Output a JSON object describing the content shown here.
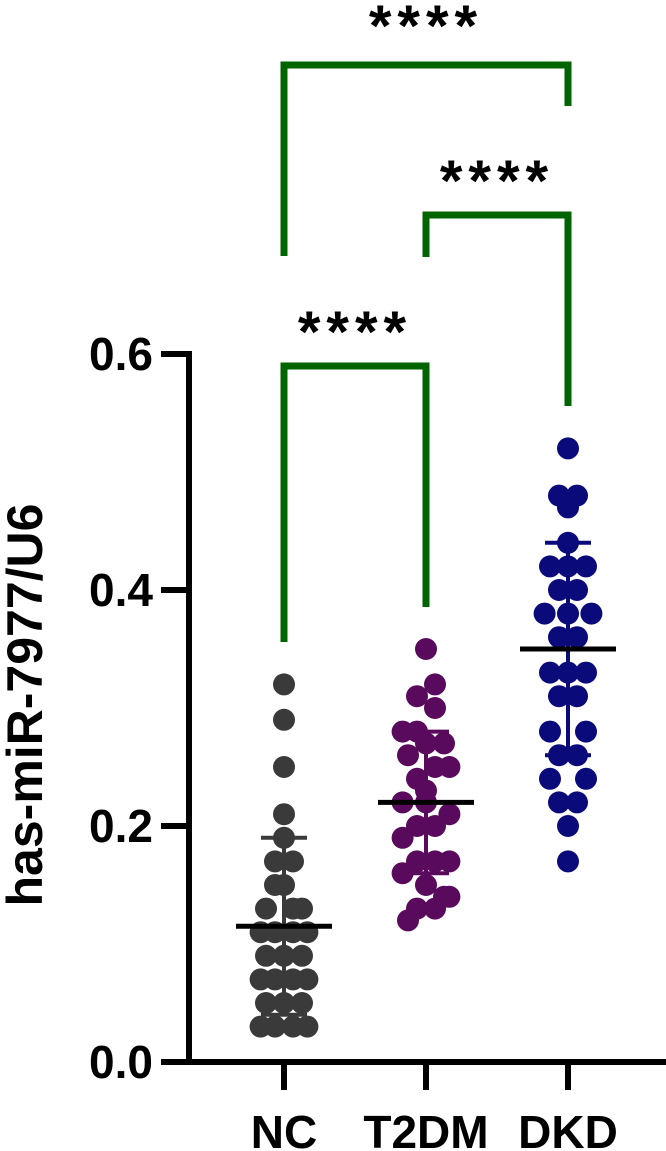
{
  "chart_data": {
    "type": "scatter",
    "ylabel": "has-miR-7977/U6",
    "ylim": [
      0,
      0.6
    ],
    "yticks": [
      0.0,
      0.2,
      0.4,
      0.6
    ],
    "ytick_labels": [
      "0.0",
      "0.2",
      "0.4",
      "0.6"
    ],
    "categories": [
      "NC",
      "T2DM",
      "DKD"
    ],
    "series": [
      {
        "category": "NC",
        "color": "#3a3a3a",
        "mean": 0.115,
        "sd_lower": 0.04,
        "sd_upper": 0.19,
        "points": [
          [
            0,
            0.32
          ],
          [
            0,
            0.29
          ],
          [
            0,
            0.25
          ],
          [
            0,
            0.21
          ],
          [
            -0.5,
            0.17
          ],
          [
            0.5,
            0.17
          ],
          [
            0,
            0.15
          ],
          [
            -1,
            0.13
          ],
          [
            1,
            0.13
          ],
          [
            -0.5,
            0.11
          ],
          [
            0.5,
            0.11
          ],
          [
            -1,
            0.09
          ],
          [
            0,
            0.09
          ],
          [
            1,
            0.09
          ],
          [
            -0.5,
            0.07
          ],
          [
            0.5,
            0.07
          ],
          [
            -1,
            0.05
          ],
          [
            0,
            0.05
          ],
          [
            1,
            0.05
          ],
          [
            -0.5,
            0.03
          ],
          [
            0.5,
            0.03
          ],
          [
            -1.3,
            0.03
          ],
          [
            1.3,
            0.03
          ],
          [
            -1.3,
            0.07
          ],
          [
            1.3,
            0.07
          ],
          [
            -1.3,
            0.11
          ],
          [
            1.3,
            0.11
          ],
          [
            -0.5,
            0.15
          ],
          [
            0.5,
            0.13
          ],
          [
            0,
            0.19
          ]
        ]
      },
      {
        "category": "T2DM",
        "color": "#5a0a5c",
        "mean": 0.22,
        "sd_lower": 0.16,
        "sd_upper": 0.28,
        "points": [
          [
            0,
            0.35
          ],
          [
            -0.5,
            0.31
          ],
          [
            0.5,
            0.32
          ],
          [
            -0.5,
            0.28
          ],
          [
            0.5,
            0.3
          ],
          [
            -1.3,
            0.28
          ],
          [
            1.3,
            0.25
          ],
          [
            -1,
            0.26
          ],
          [
            0,
            0.27
          ],
          [
            1,
            0.27
          ],
          [
            -0.5,
            0.24
          ],
          [
            0.5,
            0.25
          ],
          [
            -1.3,
            0.22
          ],
          [
            0,
            0.22
          ],
          [
            1.3,
            0.21
          ],
          [
            -0.5,
            0.2
          ],
          [
            0.5,
            0.2
          ],
          [
            -1.3,
            0.19
          ],
          [
            1.3,
            0.17
          ],
          [
            -0.5,
            0.17
          ],
          [
            0.5,
            0.17
          ],
          [
            -1.3,
            0.16
          ],
          [
            0,
            0.15
          ],
          [
            1.3,
            0.14
          ],
          [
            -0.5,
            0.13
          ],
          [
            0.5,
            0.13
          ],
          [
            -1,
            0.12
          ],
          [
            1,
            0.14
          ],
          [
            0,
            0.23
          ]
        ]
      },
      {
        "category": "DKD",
        "color": "#0a0a7a",
        "mean": 0.35,
        "sd_lower": 0.26,
        "sd_upper": 0.44,
        "points": [
          [
            0,
            0.52
          ],
          [
            -0.5,
            0.48
          ],
          [
            0.5,
            0.48
          ],
          [
            0,
            0.47
          ],
          [
            0,
            0.44
          ],
          [
            -1,
            0.42
          ],
          [
            0,
            0.42
          ],
          [
            1,
            0.42
          ],
          [
            -0.5,
            0.4
          ],
          [
            0.5,
            0.4
          ],
          [
            -1.3,
            0.38
          ],
          [
            0,
            0.38
          ],
          [
            1.3,
            0.38
          ],
          [
            -0.5,
            0.36
          ],
          [
            0.5,
            0.36
          ],
          [
            -1,
            0.33
          ],
          [
            0,
            0.33
          ],
          [
            1,
            0.33
          ],
          [
            -0.5,
            0.31
          ],
          [
            0.5,
            0.31
          ],
          [
            -1,
            0.28
          ],
          [
            1,
            0.28
          ],
          [
            -0.5,
            0.26
          ],
          [
            0.5,
            0.26
          ],
          [
            -1,
            0.24
          ],
          [
            1,
            0.24
          ],
          [
            -0.5,
            0.22
          ],
          [
            0.5,
            0.22
          ],
          [
            0,
            0.2
          ],
          [
            0,
            0.17
          ]
        ]
      }
    ],
    "comparisons": [
      {
        "from": "NC",
        "to": "DKD",
        "label": "****",
        "color": "#006400"
      },
      {
        "from": "T2DM",
        "to": "DKD",
        "label": "****",
        "color": "#006400"
      },
      {
        "from": "NC",
        "to": "T2DM",
        "label": "****",
        "color": "#006400"
      }
    ]
  }
}
